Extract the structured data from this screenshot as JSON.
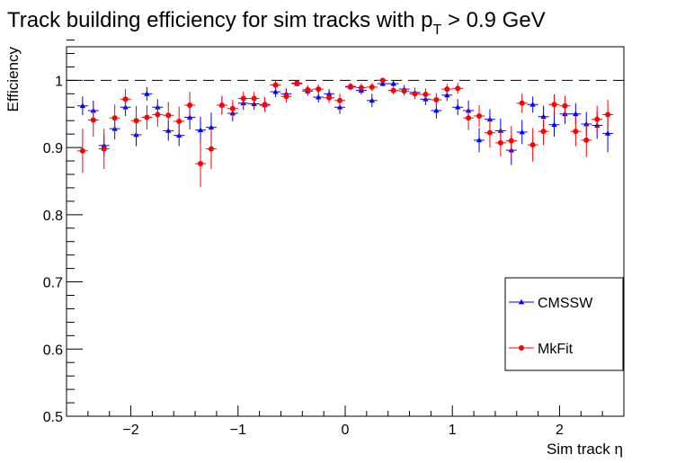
{
  "chart_data": {
    "type": "scatter",
    "title_main": "Track building efficiency for sim tracks with p",
    "title_subscript": "T",
    "title_suffix": " > 0.9 GeV",
    "xlabel": "Sim track η",
    "ylabel": "Efficiency",
    "xlim": [
      -2.6,
      2.6
    ],
    "ylim": [
      0.5,
      1.05
    ],
    "xticks": [
      -2,
      -1,
      0,
      1,
      2
    ],
    "xtick_labels": [
      "−2",
      "−1",
      "0",
      "1",
      "2"
    ],
    "yticks": [
      0.5,
      0.6,
      0.7,
      0.8,
      0.9,
      1.0
    ],
    "ytick_labels": [
      "0.5",
      "0.6",
      "0.7",
      "0.8",
      "0.9",
      "1"
    ],
    "reference_line": 1.0,
    "bin_half_width": 0.05,
    "legend": [
      {
        "label": "CMSSW",
        "color": "#0000ff",
        "marker": "triangle"
      },
      {
        "label": "MkFit",
        "color": "#ff0000",
        "marker": "circle"
      }
    ],
    "series": [
      {
        "name": "CMSSW",
        "color": "#0000ff",
        "marker": "triangle",
        "x": [
          -2.45,
          -2.35,
          -2.25,
          -2.15,
          -2.05,
          -1.95,
          -1.85,
          -1.75,
          -1.65,
          -1.55,
          -1.45,
          -1.35,
          -1.25,
          -1.15,
          -1.05,
          -0.95,
          -0.85,
          -0.75,
          -0.65,
          -0.55,
          -0.45,
          -0.35,
          -0.25,
          -0.15,
          -0.05,
          0.05,
          0.15,
          0.25,
          0.35,
          0.45,
          0.55,
          0.65,
          0.75,
          0.85,
          0.95,
          1.05,
          1.15,
          1.25,
          1.35,
          1.45,
          1.55,
          1.65,
          1.75,
          1.85,
          1.95,
          2.05,
          2.15,
          2.25,
          2.35,
          2.45
        ],
        "y": [
          0.962,
          0.955,
          0.903,
          0.928,
          0.96,
          0.919,
          0.98,
          0.96,
          0.925,
          0.918,
          0.945,
          0.926,
          0.93,
          0.963,
          0.951,
          0.966,
          0.965,
          0.963,
          0.983,
          0.98,
          0.995,
          0.984,
          0.975,
          0.98,
          0.96,
          0.99,
          0.985,
          0.97,
          0.995,
          0.995,
          0.987,
          0.982,
          0.972,
          0.955,
          0.978,
          0.96,
          0.955,
          0.911,
          0.942,
          0.925,
          0.896,
          0.923,
          0.964,
          0.946,
          0.934,
          0.95,
          0.95,
          0.935,
          0.933,
          0.921
        ],
        "err": [
          0.014,
          0.015,
          0.016,
          0.016,
          0.013,
          0.017,
          0.01,
          0.012,
          0.015,
          0.016,
          0.018,
          0.02,
          0.022,
          0.013,
          0.012,
          0.01,
          0.009,
          0.01,
          0.008,
          0.008,
          0.004,
          0.007,
          0.008,
          0.007,
          0.01,
          0.005,
          0.006,
          0.01,
          0.004,
          0.004,
          0.006,
          0.007,
          0.009,
          0.012,
          0.009,
          0.012,
          0.015,
          0.018,
          0.015,
          0.018,
          0.022,
          0.018,
          0.012,
          0.016,
          0.018,
          0.015,
          0.016,
          0.018,
          0.02,
          0.028
        ]
      },
      {
        "name": "MkFit",
        "color": "#ff0000",
        "marker": "circle",
        "x": [
          -2.45,
          -2.35,
          -2.25,
          -2.15,
          -2.05,
          -1.95,
          -1.85,
          -1.75,
          -1.65,
          -1.55,
          -1.45,
          -1.35,
          -1.25,
          -1.15,
          -1.05,
          -0.95,
          -0.85,
          -0.75,
          -0.65,
          -0.55,
          -0.45,
          -0.35,
          -0.25,
          -0.15,
          -0.05,
          0.05,
          0.15,
          0.25,
          0.35,
          0.45,
          0.55,
          0.65,
          0.75,
          0.85,
          0.95,
          1.05,
          1.15,
          1.25,
          1.35,
          1.45,
          1.55,
          1.65,
          1.75,
          1.85,
          1.95,
          2.05,
          2.15,
          2.25,
          2.35,
          2.45
        ],
        "y": [
          0.895,
          0.941,
          0.898,
          0.944,
          0.972,
          0.94,
          0.945,
          0.949,
          0.948,
          0.939,
          0.963,
          0.876,
          0.898,
          0.963,
          0.958,
          0.973,
          0.973,
          0.964,
          0.993,
          0.976,
          0.996,
          0.986,
          0.987,
          0.974,
          0.97,
          0.991,
          0.989,
          0.99,
          1.0,
          0.985,
          0.984,
          0.98,
          0.979,
          0.971,
          0.987,
          0.988,
          0.944,
          0.947,
          0.922,
          0.907,
          0.91,
          0.966,
          0.904,
          0.924,
          0.964,
          0.962,
          0.924,
          0.911,
          0.942,
          0.949
        ],
        "err": [
          0.033,
          0.025,
          0.03,
          0.02,
          0.015,
          0.022,
          0.018,
          0.018,
          0.02,
          0.022,
          0.02,
          0.035,
          0.03,
          0.014,
          0.013,
          0.01,
          0.01,
          0.011,
          0.007,
          0.009,
          0.004,
          0.007,
          0.007,
          0.008,
          0.01,
          0.005,
          0.006,
          0.006,
          0.002,
          0.006,
          0.007,
          0.008,
          0.009,
          0.01,
          0.008,
          0.008,
          0.018,
          0.016,
          0.022,
          0.02,
          0.022,
          0.014,
          0.025,
          0.02,
          0.015,
          0.015,
          0.022,
          0.025,
          0.02,
          0.022
        ]
      }
    ]
  }
}
